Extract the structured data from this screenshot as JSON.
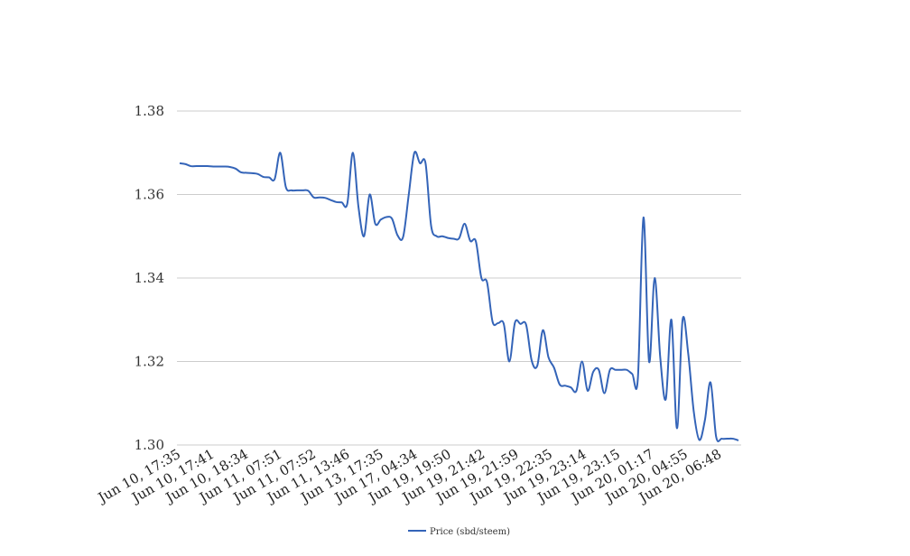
{
  "colors": {
    "series": "#3464b8",
    "grid": "#cccccc",
    "background": "#ffffff"
  },
  "chart_data": {
    "type": "line",
    "title": "",
    "xlabel": "",
    "ylabel": "",
    "ylim": [
      1.3,
      1.38
    ],
    "yticks": [
      "1.30",
      "1.32",
      "1.34",
      "1.36",
      "1.38"
    ],
    "xtick_labels": [
      "Jun 10, 17:35",
      "Jun 10, 17:41",
      "Jun 10, 18:34",
      "Jun 11, 07:51",
      "Jun 11, 07:52",
      "Jun 11, 13:46",
      "Jun 13, 17:35",
      "Jun 17, 04:34",
      "Jun 19, 19:50",
      "Jun 19, 21:42",
      "Jun 19, 21:59",
      "Jun 19, 22:35",
      "Jun 19, 23:14",
      "Jun 19, 23:15",
      "Jun 20, 01:17",
      "Jun 20, 04:55",
      "Jun 20, 06:48"
    ],
    "grid": true,
    "legend_position": "bottom-center",
    "series": [
      {
        "name": "Price (sbd/steem)",
        "values": [
          1.3675,
          1.3673,
          1.3668,
          1.3668,
          1.3668,
          1.3668,
          1.3667,
          1.3667,
          1.3667,
          1.3666,
          1.3662,
          1.3653,
          1.3652,
          1.3651,
          1.3649,
          1.3642,
          1.3641,
          1.3637,
          1.37,
          1.3618,
          1.361,
          1.361,
          1.361,
          1.3609,
          1.3593,
          1.3593,
          1.3592,
          1.3587,
          1.3582,
          1.3581,
          1.3578,
          1.37,
          1.357,
          1.35,
          1.36,
          1.353,
          1.354,
          1.3546,
          1.3542,
          1.3502,
          1.3499,
          1.36,
          1.37,
          1.3675,
          1.3675,
          1.3525,
          1.35,
          1.35,
          1.3496,
          1.3494,
          1.3495,
          1.353,
          1.3489,
          1.3488,
          1.34,
          1.339,
          1.3295,
          1.3292,
          1.329,
          1.32,
          1.3293,
          1.329,
          1.3288,
          1.3202,
          1.319,
          1.3275,
          1.321,
          1.3185,
          1.3145,
          1.3142,
          1.3138,
          1.313,
          1.32,
          1.313,
          1.3175,
          1.318,
          1.3124,
          1.318,
          1.318,
          1.318,
          1.318,
          1.317,
          1.316,
          1.3545,
          1.32,
          1.34,
          1.321,
          1.311,
          1.33,
          1.304,
          1.33,
          1.322,
          1.308,
          1.3012,
          1.306,
          1.315,
          1.302,
          1.3015,
          1.3015,
          1.3015,
          1.3011
        ]
      }
    ]
  }
}
